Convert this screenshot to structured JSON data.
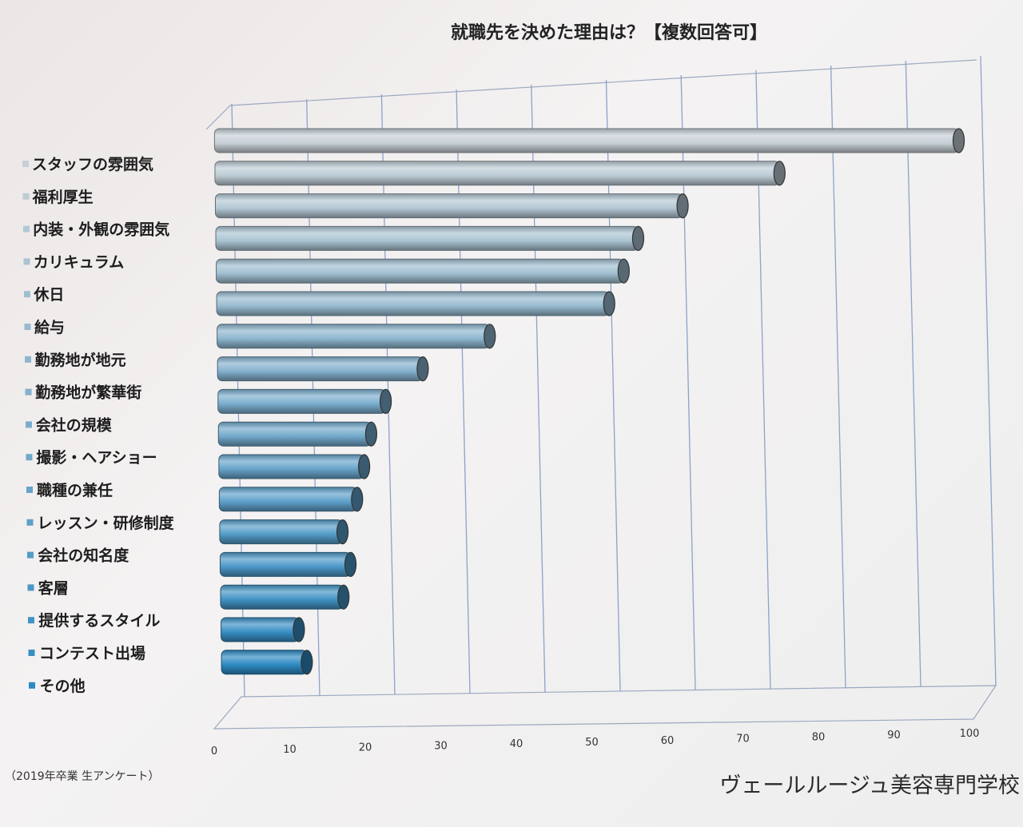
{
  "chart_data": {
    "type": "bar",
    "orientation": "horizontal",
    "style": "3d-cylinder",
    "title": "就職先を決めた理由は？【複数回答可】",
    "categories": [
      "スタッフの雰囲気",
      "福利厚生",
      "内装・外観の雰囲気",
      "カリキュラム",
      "休日",
      "給与",
      "勤務地が地元",
      "勤務地が繁華街",
      "会社の規模",
      "撮影・ヘアショー",
      "職種の兼任",
      "レッスン・研修制度",
      "会社の知名度",
      "客層",
      "提供するスタイル",
      "コンテスト出場",
      "その他"
    ],
    "values": [
      100,
      76,
      63,
      57,
      55,
      53,
      37,
      28,
      23,
      21,
      20,
      19,
      17,
      18,
      17,
      11,
      12
    ],
    "xlim": [
      0,
      100
    ],
    "xticks": [
      "0",
      "10",
      "20",
      "30",
      "40",
      "50",
      "60",
      "70",
      "80",
      "90",
      "100"
    ],
    "grid": true,
    "legend_position": "left",
    "colors": {
      "top": "#c6d0d6",
      "bottom": "#2e8ac3"
    }
  },
  "footnote": "（2019年卒業 生アンケート）",
  "school": "ヴェールルージュ美容専門学校"
}
